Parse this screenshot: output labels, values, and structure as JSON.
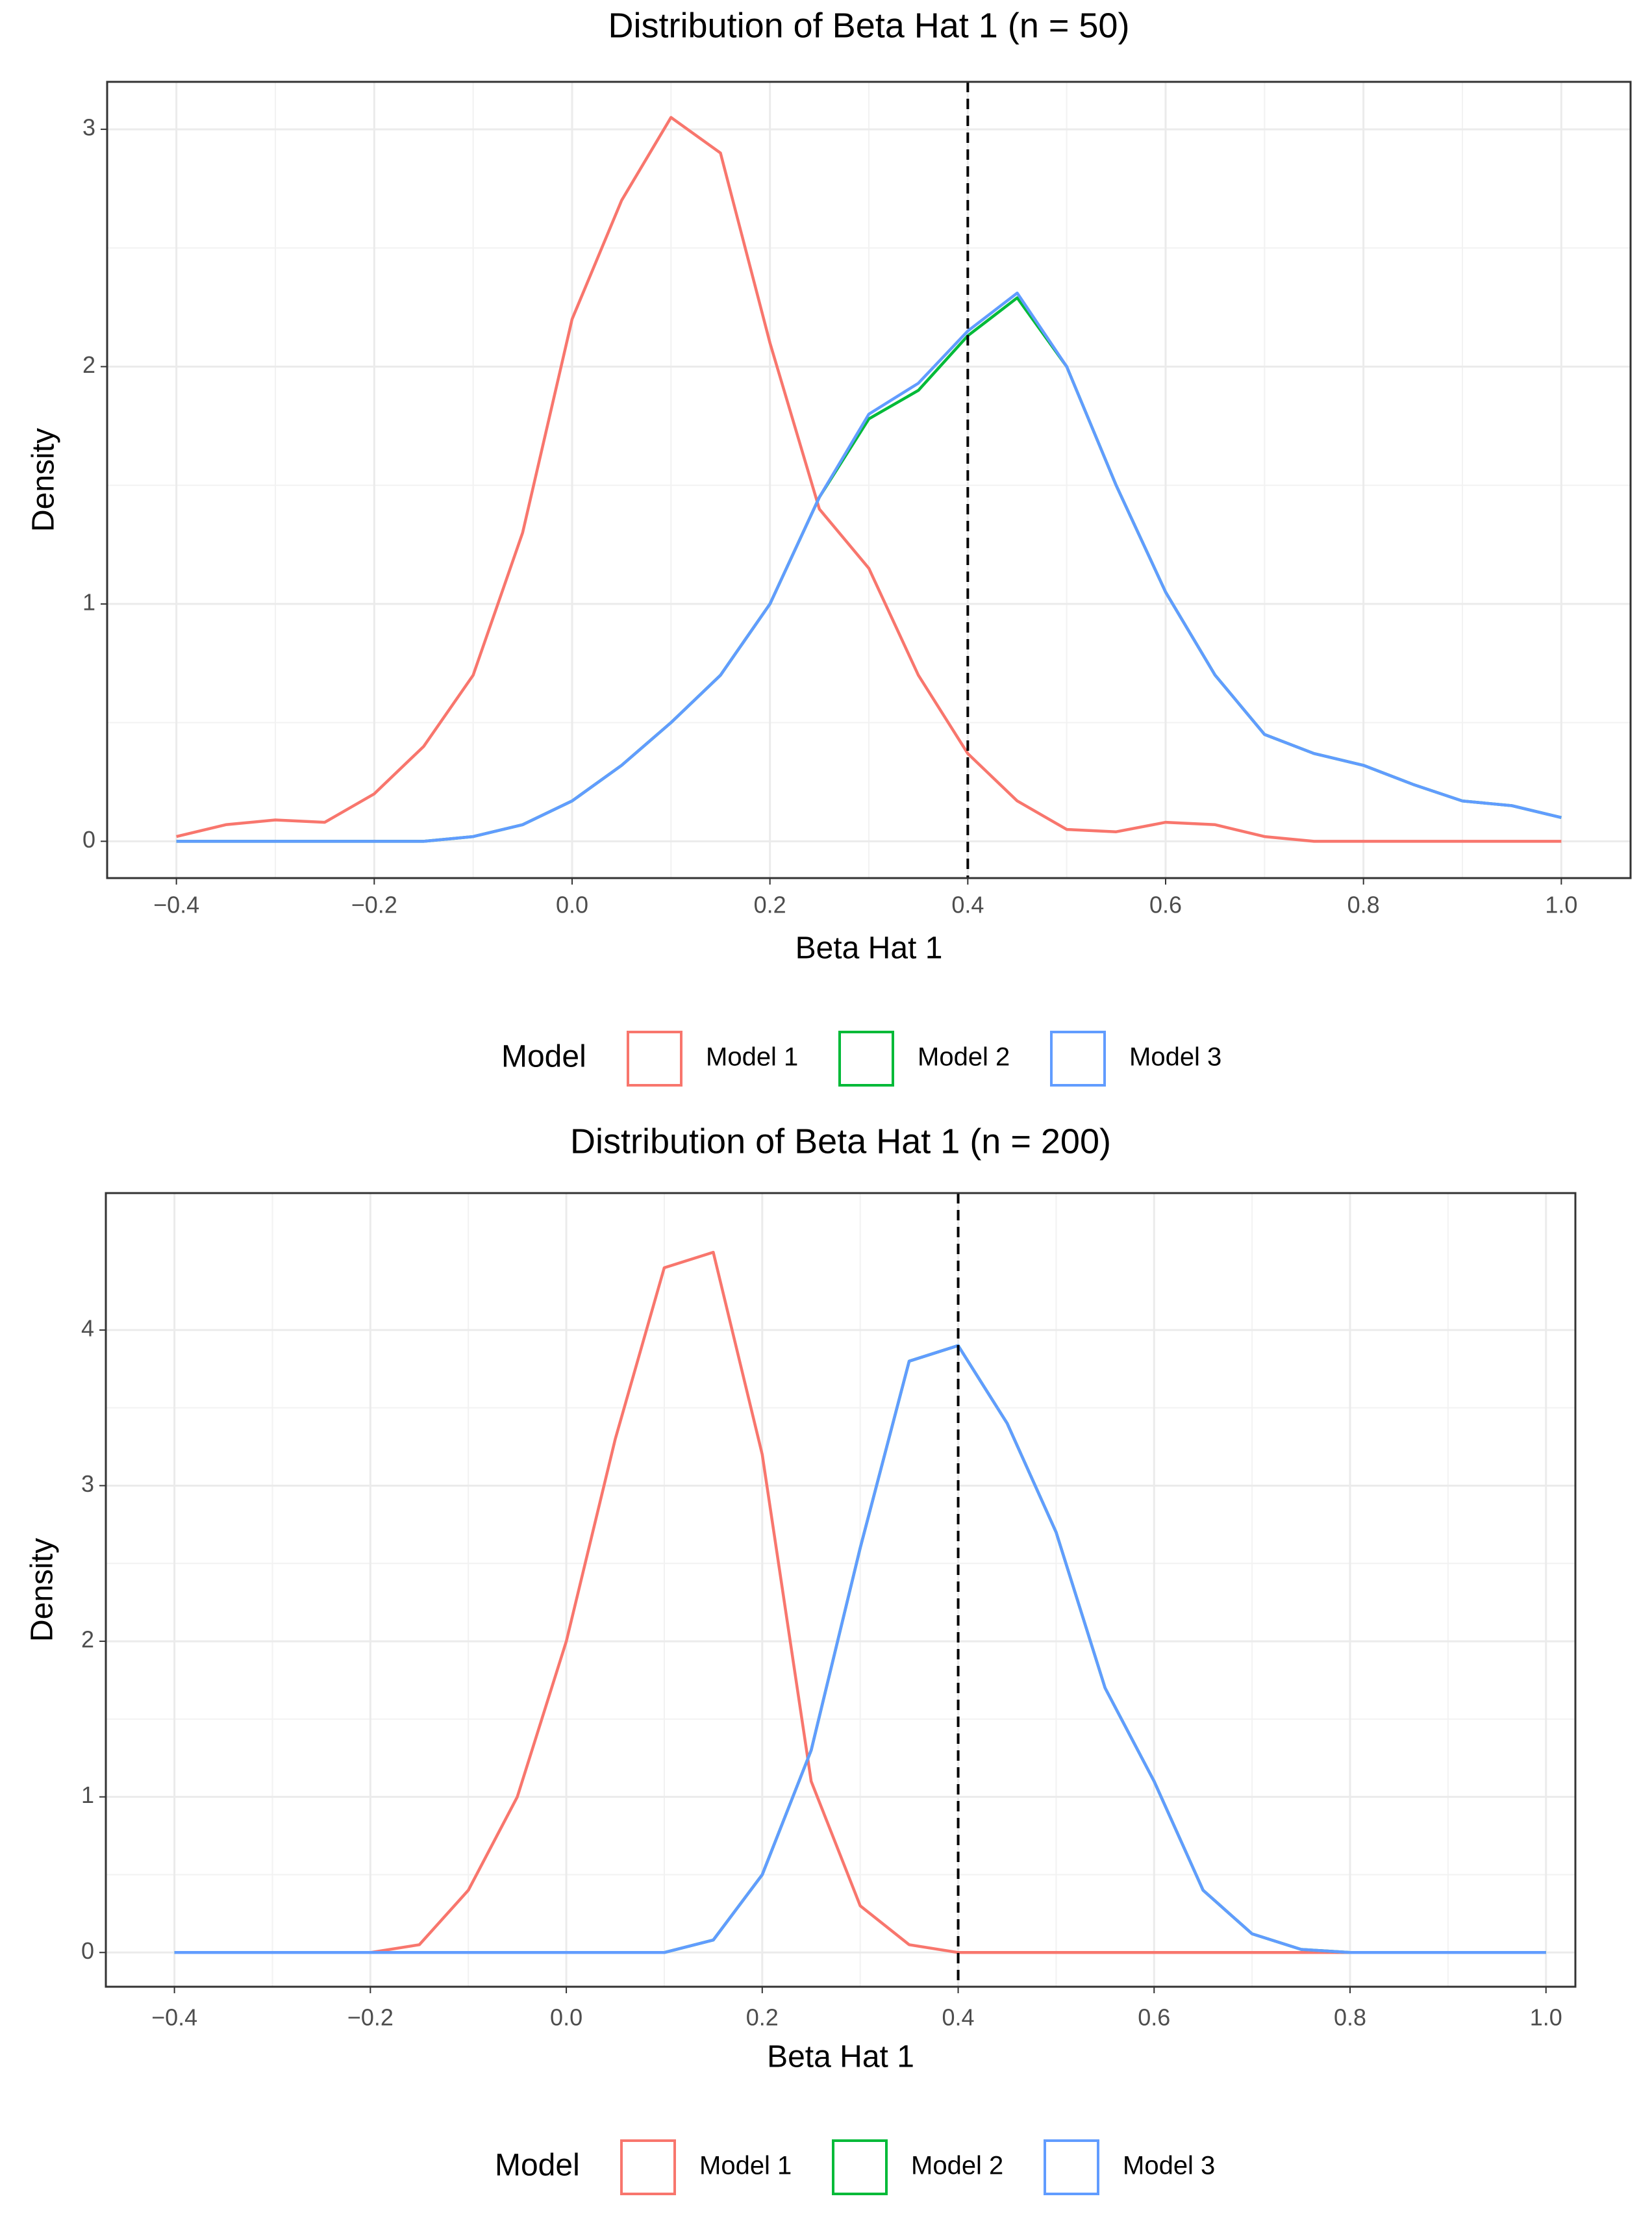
{
  "chart_data": [
    {
      "type": "line",
      "title": "Distribution of Beta Hat 1 (n = 50)",
      "x_label": "Beta Hat 1",
      "y_label": "Density",
      "legend_title": "Model",
      "x": [
        -0.4,
        -0.35,
        -0.3,
        -0.25,
        -0.2,
        -0.15,
        -0.1,
        -0.05,
        0,
        0.05,
        0.1,
        0.15,
        0.2,
        0.25,
        0.3,
        0.35,
        0.4,
        0.45,
        0.5,
        0.55,
        0.6,
        0.65,
        0.7,
        0.75,
        0.8,
        0.85,
        0.9,
        0.95,
        1.0
      ],
      "series": [
        {
          "name": "Model 1",
          "color": "#f8766d",
          "values": [
            0.02,
            0.07,
            0.09,
            0.08,
            0.2,
            0.4,
            0.7,
            1.3,
            2.2,
            2.7,
            3.05,
            2.9,
            2.1,
            1.4,
            1.15,
            0.7,
            0.37,
            0.17,
            0.05,
            0.04,
            0.08,
            0.07,
            0.02,
            0,
            0,
            0,
            0,
            0,
            0
          ]
        },
        {
          "name": "Model 2",
          "color": "#00ba38",
          "values": [
            0,
            0,
            0,
            0,
            0,
            0,
            0.02,
            0.07,
            0.17,
            0.32,
            0.5,
            0.7,
            1.0,
            1.45,
            1.78,
            1.9,
            2.13,
            2.29,
            2.0,
            1.5,
            1.05,
            0.7,
            0.45,
            0.37,
            0.32,
            0.24,
            0.17,
            0.15,
            0.1
          ]
        },
        {
          "name": "Model 3",
          "color": "#619cff",
          "values": [
            0,
            0,
            0,
            0,
            0,
            0,
            0.02,
            0.07,
            0.17,
            0.32,
            0.5,
            0.7,
            1.0,
            1.45,
            1.8,
            1.93,
            2.15,
            2.31,
            2.0,
            1.5,
            1.05,
            0.7,
            0.45,
            0.37,
            0.32,
            0.24,
            0.17,
            0.15,
            0.1
          ]
        }
      ],
      "vline": 0.4,
      "xlim": [
        -0.47,
        1.07
      ],
      "ylim": [
        -0.155,
        3.2
      ],
      "xticks": [
        {
          "value": -0.4,
          "label": "−0.4"
        },
        {
          "value": -0.2,
          "label": "−0.2"
        },
        {
          "value": 0,
          "label": "0.0"
        },
        0.2,
        0.4,
        0.6,
        0.8,
        {
          "value": 1,
          "label": "1.0"
        }
      ],
      "yticks": [
        0,
        1,
        2,
        3
      ],
      "grid": true,
      "legend_position": "bottom"
    },
    {
      "type": "line",
      "title": "Distribution of Beta Hat 1 (n = 200)",
      "x_label": "Beta Hat 1",
      "y_label": "Density",
      "legend_title": "Model",
      "x": [
        -0.4,
        -0.35,
        -0.3,
        -0.25,
        -0.2,
        -0.15,
        -0.1,
        -0.05,
        0,
        0.05,
        0.1,
        0.15,
        0.2,
        0.25,
        0.3,
        0.35,
        0.4,
        0.45,
        0.5,
        0.55,
        0.6,
        0.65,
        0.7,
        0.75,
        0.8,
        0.85,
        0.9,
        0.95,
        1.0
      ],
      "series": [
        {
          "name": "Model 1",
          "color": "#f8766d",
          "values": [
            0,
            0,
            0,
            0,
            0,
            0.05,
            0.4,
            1.0,
            2.0,
            3.3,
            4.4,
            4.5,
            3.2,
            1.1,
            0.3,
            0.05,
            0,
            0,
            0,
            0,
            0,
            0,
            0,
            0,
            0,
            0,
            0,
            0,
            0
          ]
        },
        {
          "name": "Model 2",
          "color": "#00ba38",
          "values": [
            0,
            0,
            0,
            0,
            0,
            0,
            0,
            0,
            0,
            0,
            0,
            0.08,
            0.5,
            1.3,
            2.6,
            3.8,
            3.9,
            3.4,
            2.7,
            1.7,
            1.1,
            0.4,
            0.12,
            0.02,
            0,
            0,
            0,
            0,
            0
          ]
        },
        {
          "name": "Model 3",
          "color": "#619cff",
          "values": [
            0,
            0,
            0,
            0,
            0,
            0,
            0,
            0,
            0,
            0,
            0,
            0.08,
            0.5,
            1.3,
            2.6,
            3.8,
            3.9,
            3.4,
            2.7,
            1.7,
            1.1,
            0.4,
            0.12,
            0.02,
            0,
            0,
            0,
            0,
            0
          ]
        }
      ],
      "vline": 0.4,
      "xlim": [
        -0.47,
        1.03
      ],
      "ylim": [
        -0.22,
        4.88
      ],
      "xticks": [
        {
          "value": -0.4,
          "label": "−0.4"
        },
        {
          "value": -0.2,
          "label": "−0.2"
        },
        {
          "value": 0,
          "label": "0.0"
        },
        0.2,
        0.4,
        0.6,
        0.8,
        {
          "value": 1,
          "label": "1.0"
        }
      ],
      "yticks": [
        0,
        1,
        2,
        3,
        4
      ],
      "grid": true,
      "legend_position": "bottom"
    }
  ]
}
